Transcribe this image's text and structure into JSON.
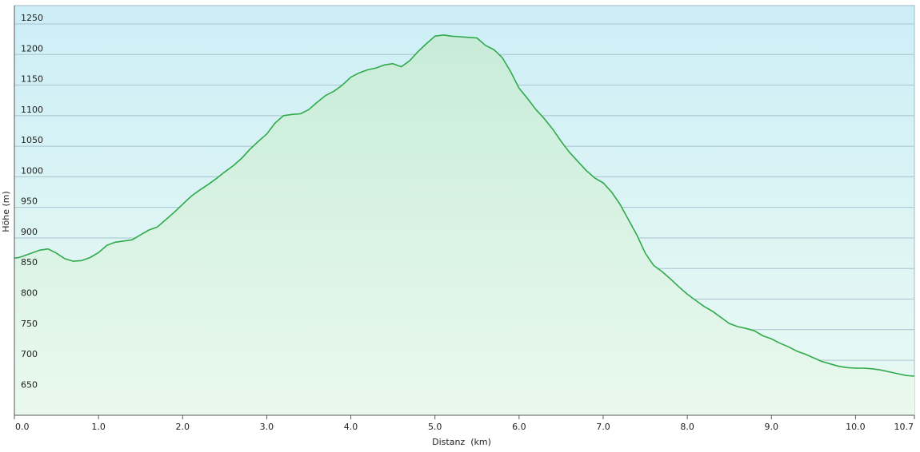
{
  "chart_data": {
    "type": "area",
    "xlabel": "Distanz  (km)",
    "ylabel": "Höhe (m)",
    "xlim": [
      0,
      10.7
    ],
    "ylim": [
      610,
      1280
    ],
    "x_ticks": [
      0.0,
      1.0,
      2.0,
      3.0,
      4.0,
      5.0,
      6.0,
      7.0,
      8.0,
      9.0,
      10.0,
      10.7
    ],
    "x_tick_labels": [
      "0.0",
      "1.0",
      "2.0",
      "3.0",
      "4.0",
      "5.0",
      "6.0",
      "7.0",
      "8.0",
      "9.0",
      "10.0",
      "10.7"
    ],
    "y_ticks": [
      650,
      700,
      750,
      800,
      850,
      900,
      950,
      1000,
      1050,
      1100,
      1150,
      1200,
      1250
    ],
    "y_tick_labels": [
      "650",
      "700",
      "750",
      "800",
      "850",
      "900",
      "950",
      "1000",
      "1050",
      "1100",
      "1150",
      "1200",
      "1250"
    ],
    "grid": true,
    "colors": {
      "line": "#2eaa4a",
      "fill_top": "#c8ecec",
      "fill_bottom": "#e8f8ea",
      "bg_top": "#cdeef7",
      "bg_bottom": "#eafaf2"
    },
    "series": [
      {
        "x": [
          0.0,
          0.05,
          0.1,
          0.2,
          0.3,
          0.4,
          0.5,
          0.6,
          0.7,
          0.8,
          0.9,
          1.0,
          1.1,
          1.2,
          1.4,
          1.5,
          1.6,
          1.7,
          1.8,
          1.9,
          2.0,
          2.1,
          2.2,
          2.3,
          2.4,
          2.5,
          2.6,
          2.7,
          2.8,
          2.9,
          3.0,
          3.1,
          3.2,
          3.3,
          3.4,
          3.5,
          3.6,
          3.7,
          3.8,
          3.9,
          4.0,
          4.1,
          4.2,
          4.3,
          4.4,
          4.5,
          4.6,
          4.7,
          4.8,
          4.9,
          5.0,
          5.1,
          5.2,
          5.3,
          5.4,
          5.5,
          5.6,
          5.7,
          5.8,
          5.9,
          6.0,
          6.1,
          6.2,
          6.3,
          6.4,
          6.5,
          6.6,
          6.7,
          6.8,
          6.9,
          7.0,
          7.1,
          7.2,
          7.3,
          7.4,
          7.5,
          7.6,
          7.7,
          7.8,
          7.9,
          8.0,
          8.1,
          8.2,
          8.3,
          8.4,
          8.5,
          8.6,
          8.7,
          8.8,
          8.9,
          9.0,
          9.1,
          9.2,
          9.3,
          9.4,
          9.5,
          9.6,
          9.7,
          9.8,
          9.9,
          10.0,
          10.1,
          10.2,
          10.3,
          10.4,
          10.5,
          10.6,
          10.7
        ],
        "y": [
          867,
          868,
          870,
          875,
          880,
          882,
          875,
          866,
          862,
          863,
          868,
          876,
          888,
          893,
          897,
          905,
          913,
          918,
          930,
          942,
          955,
          968,
          978,
          987,
          997,
          1008,
          1018,
          1030,
          1045,
          1058,
          1070,
          1088,
          1100,
          1102,
          1103,
          1110,
          1122,
          1133,
          1140,
          1150,
          1163,
          1170,
          1175,
          1178,
          1183,
          1185,
          1180,
          1190,
          1205,
          1218,
          1230,
          1232,
          1230,
          1229,
          1228,
          1227,
          1215,
          1208,
          1195,
          1172,
          1145,
          1128,
          1110,
          1095,
          1078,
          1058,
          1040,
          1025,
          1010,
          998,
          990,
          975,
          955,
          930,
          905,
          875,
          855,
          845,
          833,
          820,
          808,
          798,
          788,
          780,
          770,
          760,
          755,
          752,
          748,
          740,
          735,
          728,
          722,
          715,
          710,
          704,
          698,
          694,
          690,
          688,
          687,
          687,
          686,
          684,
          681,
          678,
          675,
          674
        ]
      }
    ]
  }
}
